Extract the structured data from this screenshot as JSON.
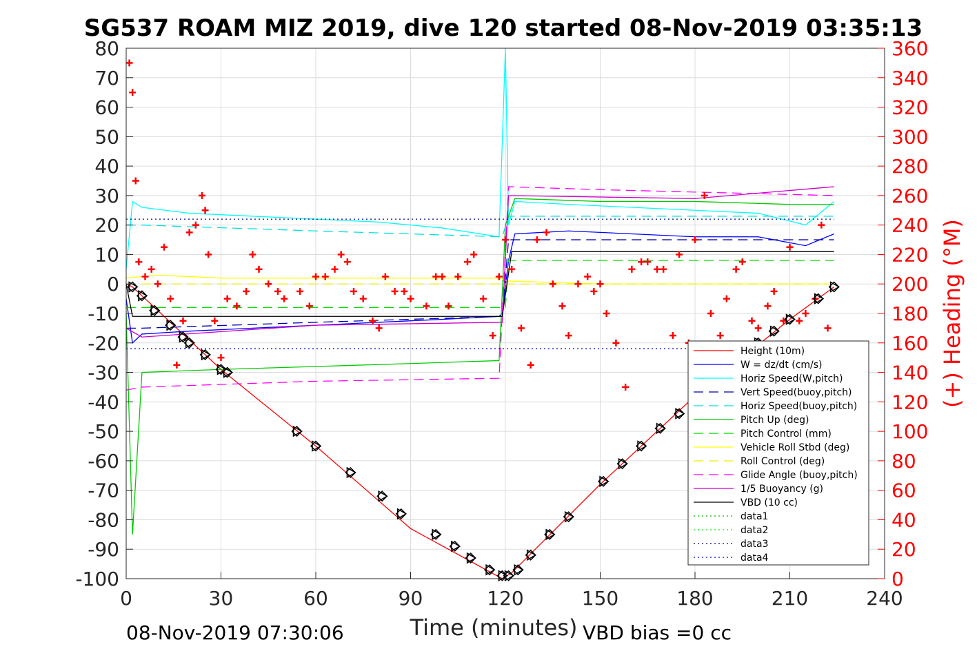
{
  "chart_data": {
    "type": "line",
    "title": "SG537 ROAM MIZ 2019, dive 120 started 08-Nov-2019 03:35:13",
    "xlabel": "Time (minutes)",
    "ylabel_right": "(+) Heading (°M)",
    "footer_left": "08-Nov-2019 07:30:06",
    "footer_right": "VBD bias =0 cc",
    "xlim": [
      0,
      240
    ],
    "ylim": [
      -100,
      80
    ],
    "ylim_right": [
      0,
      360
    ],
    "x_ticks": [
      "0",
      "30",
      "60",
      "90",
      "120",
      "150",
      "180",
      "210",
      "240"
    ],
    "y_ticks": [
      "80",
      "70",
      "60",
      "50",
      "40",
      "30",
      "20",
      "10",
      "0",
      "-10",
      "-20",
      "-30",
      "-40",
      "-50",
      "-60",
      "-70",
      "-80",
      "-90",
      "-100"
    ],
    "y_right_ticks": [
      "360",
      "340",
      "320",
      "300",
      "280",
      "260",
      "240",
      "220",
      "200",
      "180",
      "160",
      "140",
      "120",
      "100",
      "80",
      "60",
      "40",
      "20",
      "0"
    ],
    "grid": true,
    "legend_position": "bottom-right",
    "series": [
      {
        "name": "Height (10m)",
        "color": "#ff0000",
        "style": "solid",
        "x": [
          0,
          2,
          30,
          60,
          90,
          119,
          122,
          150,
          180,
          210,
          224
        ],
        "y": [
          0,
          -1,
          -29,
          -55,
          -83,
          -100,
          -98,
          -68,
          -38,
          -12,
          -1
        ]
      },
      {
        "name": "W = dz/dt (cm/s)",
        "color": "#0000ff",
        "style": "solid",
        "x": [
          0,
          2,
          5,
          20,
          40,
          60,
          80,
          100,
          118,
          119,
          121,
          123,
          140,
          160,
          180,
          200,
          215,
          224
        ],
        "y": [
          -5,
          -20,
          -17,
          -16,
          -15,
          -14,
          -13,
          -12,
          -11,
          -10,
          8,
          17,
          18,
          17,
          16,
          16,
          13,
          17
        ]
      },
      {
        "name": "Horiz Speed(W,pitch)",
        "color": "#00ffff",
        "style": "solid",
        "x": [
          0,
          2,
          5,
          20,
          40,
          60,
          80,
          100,
          118,
          120,
          121,
          123,
          140,
          160,
          180,
          200,
          215,
          224
        ],
        "y": [
          5,
          28,
          26,
          24,
          23,
          22,
          21,
          19,
          16,
          80,
          20,
          28,
          27,
          26,
          25,
          24,
          20,
          28
        ]
      },
      {
        "name": "Vert Speed(buoy,pitch)",
        "color": "#0000aa",
        "style": "dashed",
        "x": [
          0,
          5,
          60,
          119,
          121,
          224
        ],
        "y": [
          -15,
          -15,
          -13,
          -11,
          15,
          15
        ]
      },
      {
        "name": "Horiz Speed(buoy,pitch)",
        "color": "#00e0e0",
        "style": "dashed",
        "x": [
          0,
          5,
          60,
          119,
          121,
          224
        ],
        "y": [
          20,
          20,
          18,
          16,
          23,
          23
        ]
      },
      {
        "name": "Pitch Up (deg)",
        "color": "#00cc00",
        "style": "solid",
        "x": [
          0,
          2,
          5,
          30,
          60,
          90,
          118,
          120,
          123,
          150,
          180,
          210,
          224
        ],
        "y": [
          -10,
          -85,
          -30,
          -29,
          -28,
          -27,
          -26,
          20,
          29,
          28,
          28,
          27,
          27
        ]
      },
      {
        "name": "Pitch Control (mm)",
        "color": "#00dd00",
        "style": "dashed",
        "x": [
          0,
          120,
          121,
          224
        ],
        "y": [
          -8,
          -8,
          8,
          8
        ]
      },
      {
        "name": "Vehicle Roll Stbd (deg)",
        "color": "#ffff00",
        "style": "solid",
        "x": [
          0,
          10,
          30,
          60,
          90,
          118,
          121,
          150,
          180,
          210,
          224
        ],
        "y": [
          2,
          3,
          2,
          2,
          2,
          2,
          1,
          0,
          0,
          0,
          0
        ]
      },
      {
        "name": "Roll Control (deg)",
        "color": "#eeee00",
        "style": "dashed",
        "x": [
          0,
          224
        ],
        "y": [
          0,
          0
        ]
      },
      {
        "name": "Glide Angle (buoy,pitch)",
        "color": "#ff00ff",
        "style": "dashed",
        "x": [
          0,
          5,
          60,
          118,
          121,
          150,
          224
        ],
        "y": [
          -36,
          -35,
          -33,
          -32,
          33,
          32,
          30
        ]
      },
      {
        "name": "1/5 Buoyancy (g)",
        "color": "#cc00cc",
        "style": "solid",
        "x": [
          0,
          5,
          60,
          119,
          121,
          180,
          224
        ],
        "y": [
          -15,
          -18,
          -14,
          -13,
          30,
          29,
          33
        ]
      },
      {
        "name": "VBD (10 cc)",
        "color": "#000000",
        "style": "solid",
        "x": [
          0,
          2,
          60,
          119,
          122,
          150,
          224
        ],
        "y": [
          0,
          -11,
          -11,
          -11,
          11,
          11,
          11
        ]
      },
      {
        "name": "data1",
        "color": "#00bb00",
        "style": "dotted",
        "x": [],
        "y": []
      },
      {
        "name": "data2",
        "color": "#00ee00",
        "style": "dotted",
        "x": [],
        "y": []
      },
      {
        "name": "data3",
        "color": "#000088",
        "style": "dotted",
        "x": [
          0,
          224
        ],
        "y": [
          22,
          22
        ]
      },
      {
        "name": "data4",
        "color": "#0000cc",
        "style": "dotted",
        "x": [
          0,
          224
        ],
        "y": [
          -22,
          -22
        ]
      }
    ],
    "heading_series": {
      "name": "(+) Heading (°M)",
      "color": "#ff0000",
      "marker": "+",
      "x": [
        1,
        2,
        3,
        4,
        6,
        8,
        10,
        12,
        14,
        16,
        18,
        20,
        22,
        24,
        25,
        26,
        28,
        30,
        32,
        35,
        38,
        40,
        42,
        45,
        48,
        50,
        55,
        58,
        60,
        63,
        66,
        68,
        70,
        72,
        75,
        78,
        80,
        82,
        85,
        88,
        90,
        95,
        98,
        100,
        102,
        105,
        108,
        110,
        113,
        116,
        118,
        120,
        122,
        125,
        128,
        130,
        133,
        135,
        138,
        140,
        143,
        146,
        148,
        150,
        152,
        155,
        158,
        160,
        163,
        165,
        168,
        170,
        173,
        175,
        178,
        180,
        183,
        185,
        188,
        190,
        193,
        195,
        198,
        200,
        203,
        205,
        208,
        210,
        213,
        215,
        218,
        220,
        222
      ],
      "y": [
        350,
        330,
        270,
        215,
        205,
        210,
        200,
        225,
        190,
        145,
        175,
        235,
        240,
        260,
        250,
        220,
        175,
        150,
        190,
        185,
        195,
        220,
        210,
        200,
        195,
        190,
        195,
        185,
        205,
        205,
        210,
        220,
        215,
        195,
        190,
        175,
        170,
        205,
        195,
        195,
        190,
        185,
        205,
        205,
        185,
        205,
        215,
        220,
        190,
        165,
        205,
        230,
        210,
        170,
        145,
        230,
        235,
        200,
        185,
        165,
        200,
        205,
        195,
        200,
        180,
        160,
        130,
        210,
        215,
        215,
        210,
        210,
        165,
        220,
        160,
        230,
        260,
        180,
        165,
        190,
        210,
        215,
        175,
        170,
        185,
        195,
        175,
        225,
        175,
        180,
        190,
        240,
        170
      ]
    },
    "marker_series": {
      "name": "",
      "color": "#000000",
      "x": [
        2,
        5,
        9,
        14,
        18,
        20,
        25,
        30,
        32,
        54,
        60,
        71,
        81,
        87,
        98,
        104,
        109,
        115,
        119,
        121,
        124,
        128,
        134,
        140,
        151,
        157,
        163,
        169,
        175,
        200,
        205,
        210,
        219,
        224
      ],
      "y": [
        -1,
        -4,
        -9,
        -14,
        -18,
        -20,
        -24,
        -29,
        -30,
        -50,
        -55,
        -64,
        -72,
        -78,
        -85,
        -89,
        -93,
        -97,
        -99,
        -99,
        -97,
        -92,
        -85,
        -79,
        -67,
        -61,
        -55,
        -49,
        -44,
        -20,
        -16,
        -12,
        -5,
        -1
      ]
    }
  }
}
